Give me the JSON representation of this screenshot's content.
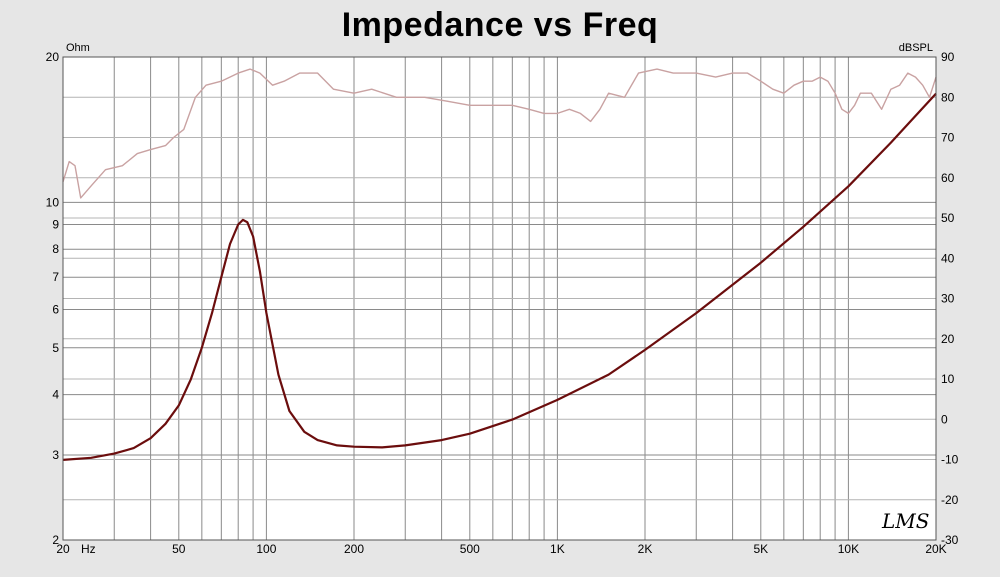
{
  "chart_data": {
    "type": "line",
    "title": "Impedance vs Freq",
    "x_scale": "log",
    "x_range": [
      20,
      20000
    ],
    "x_ticks": [
      {
        "value": 20,
        "label": "20"
      },
      {
        "value": 50,
        "label": "50"
      },
      {
        "value": 100,
        "label": "100"
      },
      {
        "value": 200,
        "label": "200"
      },
      {
        "value": 500,
        "label": "500"
      },
      {
        "value": 1000,
        "label": "1K"
      },
      {
        "value": 2000,
        "label": "2K"
      },
      {
        "value": 5000,
        "label": "5K"
      },
      {
        "value": 10000,
        "label": "10K"
      },
      {
        "value": 20000,
        "label": "20K"
      }
    ],
    "x_unit": "Hz",
    "y_left": {
      "unit": "Ohm",
      "scale": "log",
      "range": [
        2,
        20
      ],
      "ticks": [
        {
          "value": 2,
          "label": "2"
        },
        {
          "value": 3,
          "label": "3"
        },
        {
          "value": 4,
          "label": "4"
        },
        {
          "value": 5,
          "label": "5"
        },
        {
          "value": 6,
          "label": "6"
        },
        {
          "value": 7,
          "label": "7"
        },
        {
          "value": 8,
          "label": "8"
        },
        {
          "value": 9,
          "label": "9"
        },
        {
          "value": 10,
          "label": "10"
        },
        {
          "value": 20,
          "label": "20"
        }
      ]
    },
    "y_right": {
      "unit": "dBSPL",
      "scale": "linear",
      "range": [
        -30,
        90
      ],
      "ticks": [
        -30,
        -20,
        -10,
        0,
        10,
        20,
        30,
        40,
        50,
        60,
        70,
        80,
        90
      ]
    },
    "grid": true,
    "colors": {
      "background": "#e6e6e6",
      "plot_background": "#ffffff",
      "grid": "#8a8a8a",
      "impedance": "#6b0d0d",
      "spl": "#c9a2a2"
    },
    "series": [
      {
        "axis": "left",
        "points": [
          [
            20,
            2.93
          ],
          [
            25,
            2.96
          ],
          [
            30,
            3.02
          ],
          [
            35,
            3.1
          ],
          [
            40,
            3.25
          ],
          [
            45,
            3.48
          ],
          [
            50,
            3.8
          ],
          [
            55,
            4.3
          ],
          [
            60,
            5.0
          ],
          [
            65,
            5.9
          ],
          [
            70,
            7.0
          ],
          [
            75,
            8.2
          ],
          [
            80,
            9.0
          ],
          [
            83,
            9.2
          ],
          [
            86,
            9.1
          ],
          [
            90,
            8.5
          ],
          [
            95,
            7.2
          ],
          [
            100,
            5.9
          ],
          [
            110,
            4.4
          ],
          [
            120,
            3.7
          ],
          [
            135,
            3.35
          ],
          [
            150,
            3.22
          ],
          [
            175,
            3.14
          ],
          [
            200,
            3.12
          ],
          [
            250,
            3.11
          ],
          [
            300,
            3.14
          ],
          [
            400,
            3.22
          ],
          [
            500,
            3.32
          ],
          [
            700,
            3.55
          ],
          [
            1000,
            3.9
          ],
          [
            1500,
            4.4
          ],
          [
            2000,
            4.95
          ],
          [
            3000,
            5.9
          ],
          [
            5000,
            7.5
          ],
          [
            7000,
            8.9
          ],
          [
            10000,
            10.8
          ],
          [
            14000,
            13.3
          ],
          [
            20000,
            16.8
          ]
        ]
      },
      {
        "axis": "right",
        "points": [
          [
            20,
            59
          ],
          [
            21,
            64
          ],
          [
            22,
            63
          ],
          [
            23,
            55
          ],
          [
            25,
            58
          ],
          [
            28,
            62
          ],
          [
            32,
            63
          ],
          [
            36,
            66
          ],
          [
            40,
            67
          ],
          [
            45,
            68
          ],
          [
            48,
            70
          ],
          [
            52,
            72
          ],
          [
            57,
            80
          ],
          [
            62,
            83
          ],
          [
            70,
            84
          ],
          [
            80,
            86
          ],
          [
            88,
            87
          ],
          [
            95,
            86
          ],
          [
            105,
            83
          ],
          [
            115,
            84
          ],
          [
            130,
            86
          ],
          [
            150,
            86
          ],
          [
            170,
            82
          ],
          [
            200,
            81
          ],
          [
            230,
            82
          ],
          [
            280,
            80
          ],
          [
            350,
            80
          ],
          [
            420,
            79
          ],
          [
            500,
            78
          ],
          [
            600,
            78
          ],
          [
            700,
            78
          ],
          [
            800,
            77
          ],
          [
            900,
            76
          ],
          [
            1000,
            76
          ],
          [
            1100,
            77
          ],
          [
            1200,
            76
          ],
          [
            1300,
            74
          ],
          [
            1400,
            77
          ],
          [
            1500,
            81
          ],
          [
            1700,
            80
          ],
          [
            1900,
            86
          ],
          [
            2200,
            87
          ],
          [
            2500,
            86
          ],
          [
            3000,
            86
          ],
          [
            3500,
            85
          ],
          [
            4000,
            86
          ],
          [
            4500,
            86
          ],
          [
            5000,
            84
          ],
          [
            5500,
            82
          ],
          [
            6000,
            81
          ],
          [
            6500,
            83
          ],
          [
            7000,
            84
          ],
          [
            7500,
            84
          ],
          [
            8000,
            85
          ],
          [
            8500,
            84
          ],
          [
            9000,
            81
          ],
          [
            9500,
            77
          ],
          [
            10000,
            76
          ],
          [
            10500,
            78
          ],
          [
            11000,
            81
          ],
          [
            12000,
            81
          ],
          [
            13000,
            77
          ],
          [
            14000,
            82
          ],
          [
            15000,
            83
          ],
          [
            16000,
            86
          ],
          [
            17000,
            85
          ],
          [
            18000,
            83
          ],
          [
            19000,
            80
          ],
          [
            20000,
            85
          ]
        ]
      }
    ]
  },
  "logo_text": "LMS"
}
